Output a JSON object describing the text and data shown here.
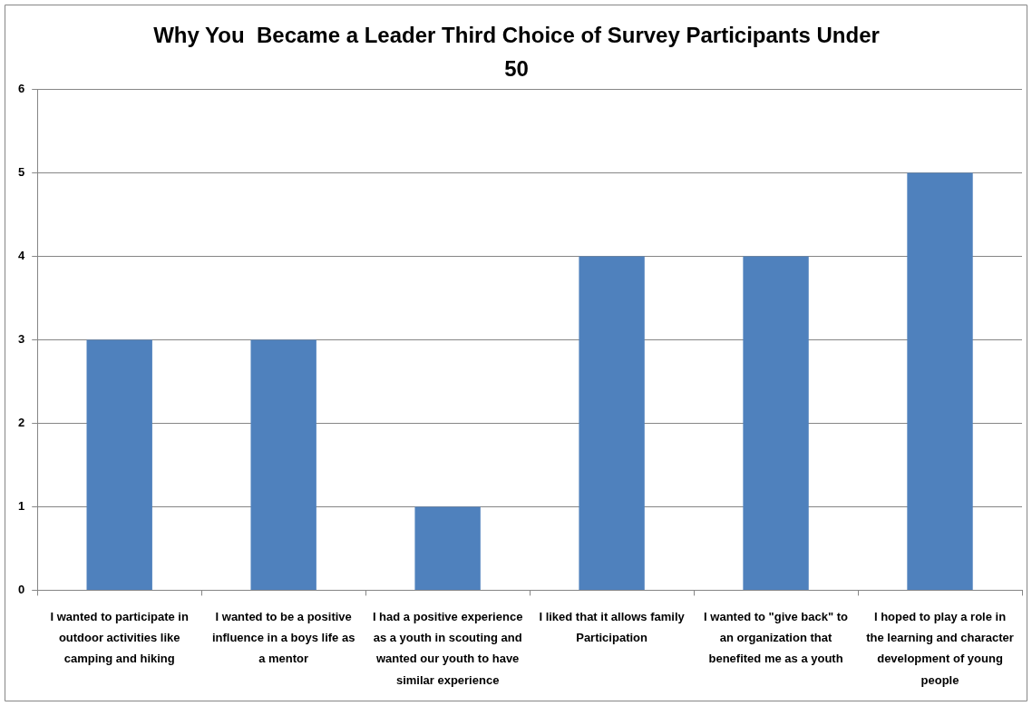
{
  "chart_data": {
    "type": "bar",
    "title": "Why You  Became a Leader Third Choice of Survey Participants Under 50",
    "categories": [
      "I wanted to participate in outdoor activities like camping and hiking",
      "I wanted to be a positive influence in a boys life as a mentor",
      "I had a positive experience as a youth in scouting and wanted our youth to have similar experience",
      "I liked that it allows family Participation",
      "I wanted to \"give back\" to an organization that benefited me as a youth",
      "I hoped to play a role in the learning and character development of young people"
    ],
    "values": [
      3,
      3,
      1,
      4,
      4,
      5
    ],
    "color": "#4f81bd",
    "ylim": [
      0,
      6
    ],
    "yticks": [
      0,
      1,
      2,
      3,
      4,
      5,
      6
    ],
    "grid": "y"
  }
}
